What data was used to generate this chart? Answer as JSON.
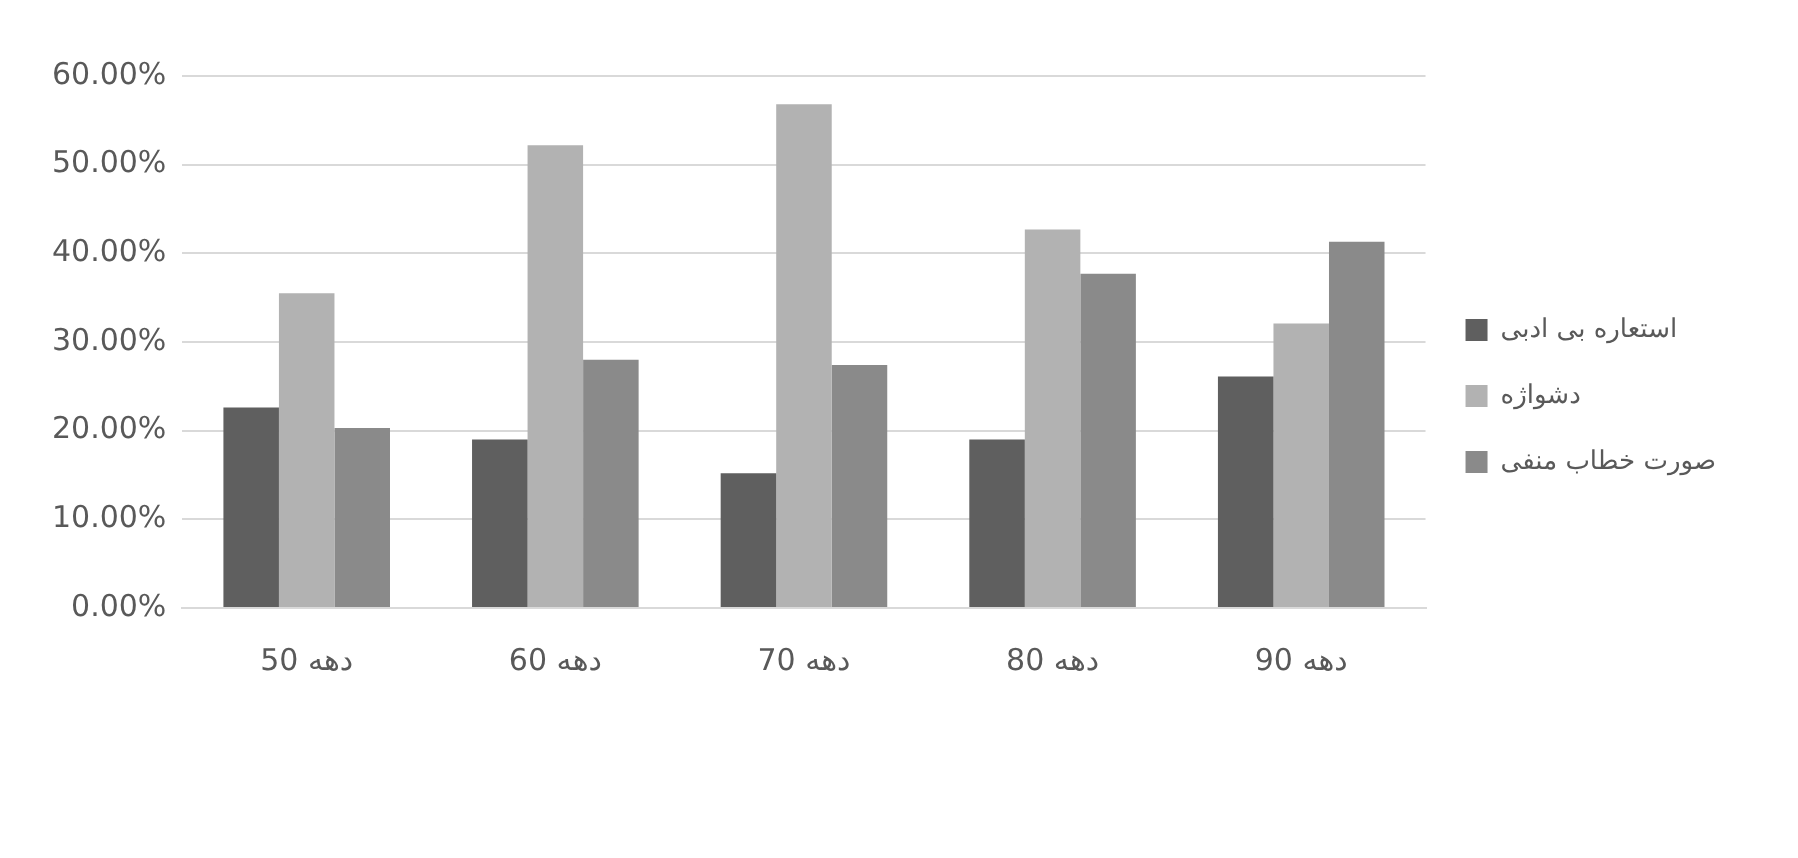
{
  "chart_data": {
    "type": "bar",
    "categories": [
      "دهه 50",
      "دهه 60",
      "دهه 70",
      "دهه 80",
      "دهه 90"
    ],
    "series": [
      {
        "name": "استعاره بی ادبی",
        "color": "#5f5f5f",
        "values": [
          22.6,
          19.0,
          15.2,
          19.0,
          26.1
        ]
      },
      {
        "name": "دشواژه",
        "color": "#b2b2b2",
        "values": [
          35.5,
          52.2,
          56.8,
          42.7,
          32.1
        ]
      },
      {
        "name": "صورت خطاب منفی",
        "color": "#8a8a8a",
        "values": [
          20.3,
          28.0,
          27.4,
          37.7,
          41.3
        ]
      }
    ],
    "ylim": [
      0,
      60
    ],
    "yticks": [
      {
        "value": 0,
        "label": "0.00%"
      },
      {
        "value": 10,
        "label": "10.00%"
      },
      {
        "value": 20,
        "label": "20.00%"
      },
      {
        "value": 30,
        "label": "30.00%"
      },
      {
        "value": 40,
        "label": "40.00%"
      },
      {
        "value": 50,
        "label": "50.00%"
      },
      {
        "value": 60,
        "label": "60.00%"
      }
    ],
    "grid": "y",
    "legend": "right"
  }
}
